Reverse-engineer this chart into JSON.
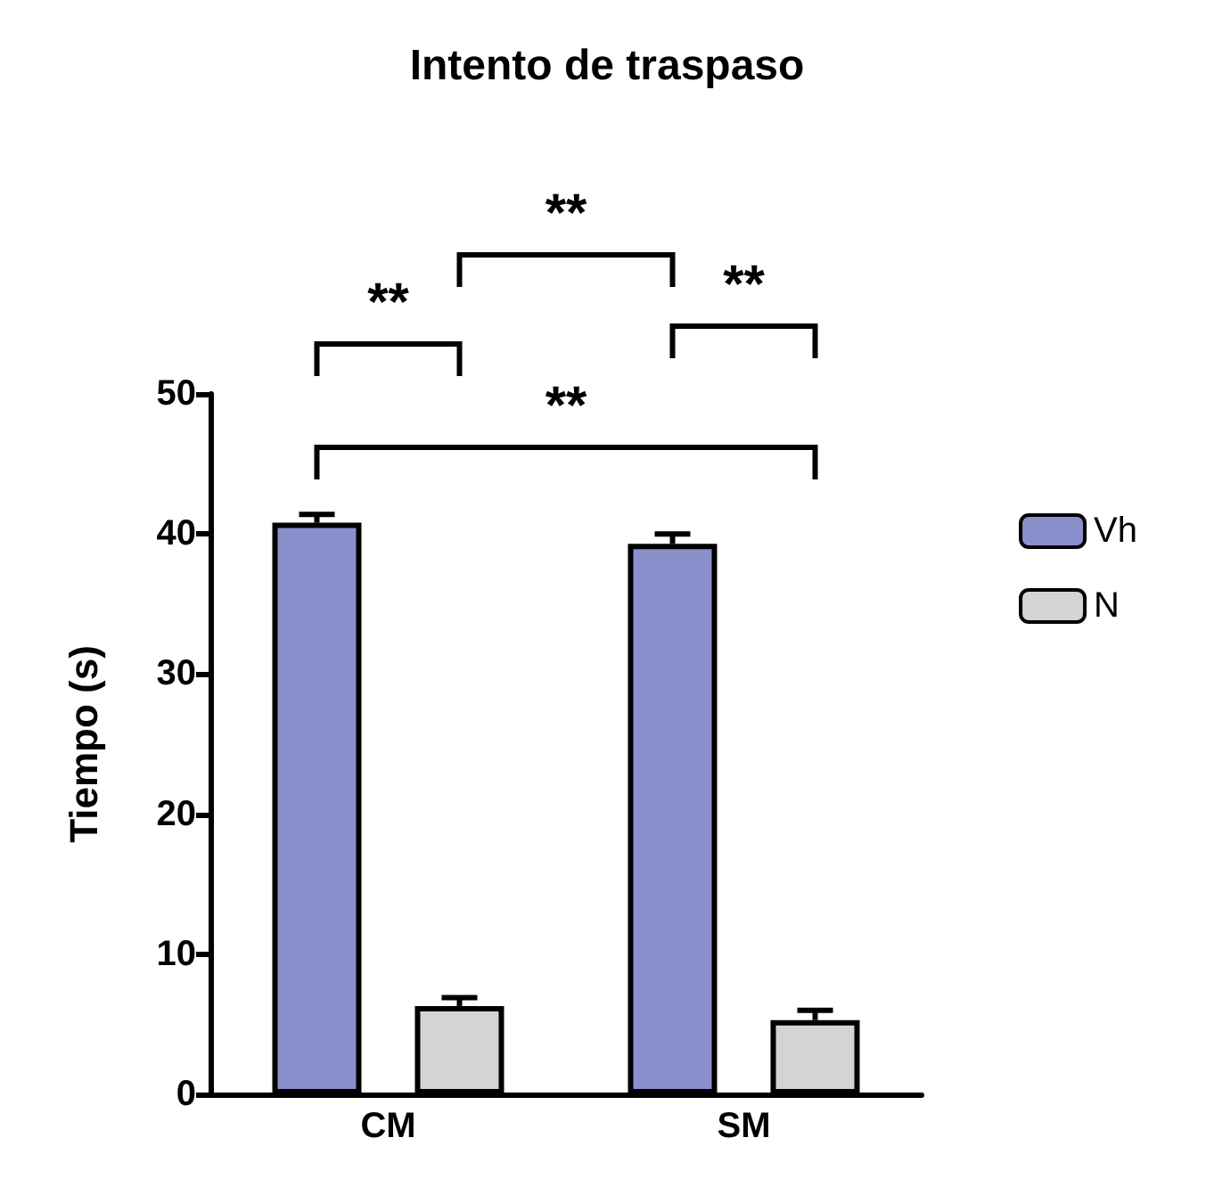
{
  "chart_data": {
    "type": "bar",
    "title": "Intento de traspaso",
    "ylabel": "Tiempo (s)",
    "categories": [
      "CM",
      "SM"
    ],
    "series": [
      {
        "name": "Vh",
        "color": "#8b8fcc",
        "values": [
          40.8,
          39.3
        ],
        "errors": [
          0.6,
          0.7
        ]
      },
      {
        "name": "N",
        "color": "#d4d4d4",
        "values": [
          6.3,
          5.3
        ],
        "errors": [
          0.6,
          0.7
        ]
      }
    ],
    "ylim": [
      0,
      50
    ],
    "yticks": [
      0,
      10,
      20,
      30,
      40,
      50
    ],
    "grid": false,
    "legend": "right",
    "annotations": [
      "**",
      "**",
      "**",
      "**"
    ]
  }
}
